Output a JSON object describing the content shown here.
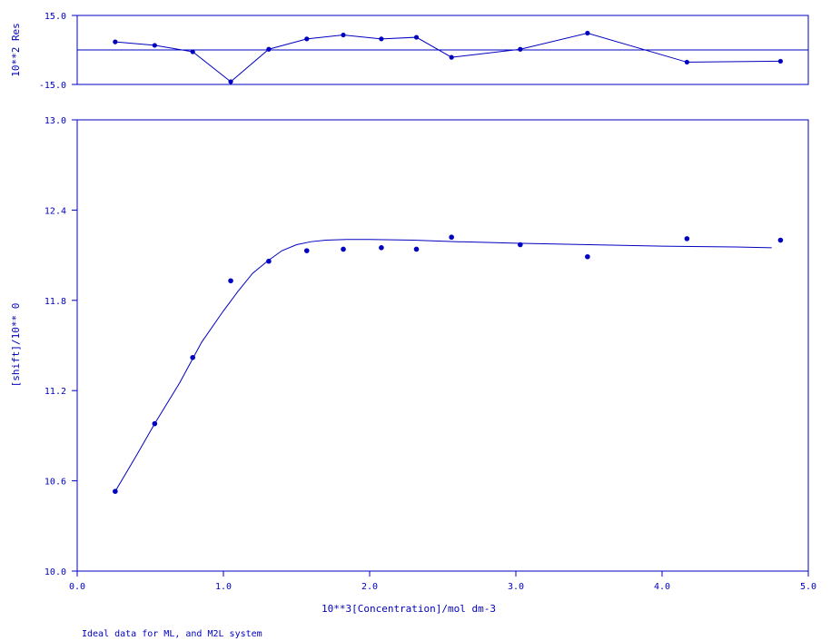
{
  "colors": {
    "ink": "#0000c0",
    "background": "#ffffff"
  },
  "caption": "Ideal data for ML, and M2L system",
  "chart_data": [
    {
      "type": "line",
      "panel": "residuals",
      "ylabel": "10**2 Res",
      "ylim": [
        -15.0,
        15.0
      ],
      "ytick_labels": [
        "15.0",
        "-15.0"
      ],
      "zero_line": 0,
      "x": [
        0.26,
        0.53,
        0.79,
        1.05,
        1.31,
        1.57,
        1.82,
        2.08,
        2.32,
        2.56,
        3.03,
        3.49,
        4.17,
        4.81
      ],
      "residuals": [
        3.5,
        2.0,
        -0.8,
        -13.8,
        0.3,
        4.8,
        6.5,
        4.8,
        5.5,
        -3.2,
        0.3,
        7.3,
        -5.3,
        -4.9
      ],
      "grid": false
    },
    {
      "type": "scatter",
      "panel": "main",
      "xlabel": "10**3[Concentration]/mol dm-3",
      "ylabel": "[shift]/10** 0",
      "xlim": [
        0.0,
        5.0
      ],
      "ylim": [
        10.0,
        13.0
      ],
      "xtick_labels": [
        "0.0",
        "1.0",
        "2.0",
        "3.0",
        "4.0",
        "5.0"
      ],
      "ytick_labels": [
        "10.0",
        "10.6",
        "11.2",
        "11.8",
        "12.4",
        "13.0"
      ],
      "grid": false,
      "series": [
        {
          "kind": "points",
          "x": [
            0.26,
            0.53,
            0.79,
            1.05,
            1.31,
            1.57,
            1.82,
            2.08,
            2.32,
            2.56,
            3.03,
            3.49,
            4.17,
            4.81
          ],
          "y": [
            10.53,
            10.98,
            11.42,
            11.93,
            12.06,
            12.13,
            12.14,
            12.15,
            12.14,
            12.22,
            12.17,
            12.09,
            12.21,
            12.2
          ]
        },
        {
          "kind": "fit-line",
          "x": [
            0.26,
            0.4,
            0.53,
            0.7,
            0.85,
            1.0,
            1.1,
            1.2,
            1.3,
            1.4,
            1.5,
            1.6,
            1.7,
            1.85,
            2.0,
            2.3,
            2.6,
            3.0,
            3.5,
            4.0,
            4.5,
            4.75
          ],
          "y": [
            10.53,
            10.76,
            10.98,
            11.25,
            11.52,
            11.73,
            11.86,
            11.98,
            12.06,
            12.13,
            12.17,
            12.19,
            12.2,
            12.205,
            12.205,
            12.2,
            12.19,
            12.18,
            12.17,
            12.16,
            12.155,
            12.15
          ]
        }
      ]
    }
  ]
}
